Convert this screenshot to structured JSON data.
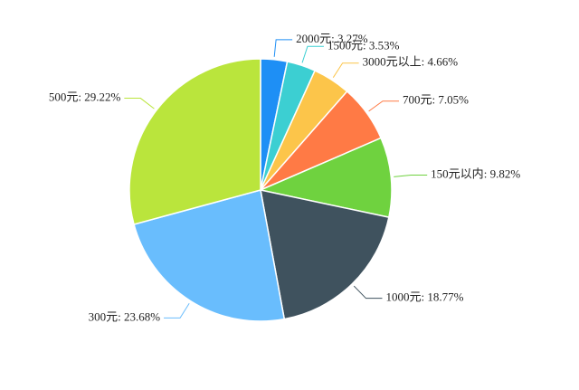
{
  "chart_data": {
    "type": "pie",
    "categories": [
      "2000元",
      "1500元",
      "3000元以上",
      "700元",
      "150元以内",
      "1000元",
      "300元",
      "500元"
    ],
    "separator": ": ",
    "values": [
      3.27,
      3.53,
      4.66,
      7.05,
      9.82,
      18.77,
      23.68,
      29.22
    ],
    "value_labels": [
      "3.27%",
      "3.53%",
      "4.66%",
      "7.05%",
      "9.82%",
      "18.77%",
      "23.68%",
      "29.22%"
    ],
    "colors": [
      "#1e8ff5",
      "#3ccfd2",
      "#fcc54a",
      "#ff7a45",
      "#6fd23f",
      "#3f525e",
      "#69bdfd",
      "#bae53c"
    ]
  }
}
